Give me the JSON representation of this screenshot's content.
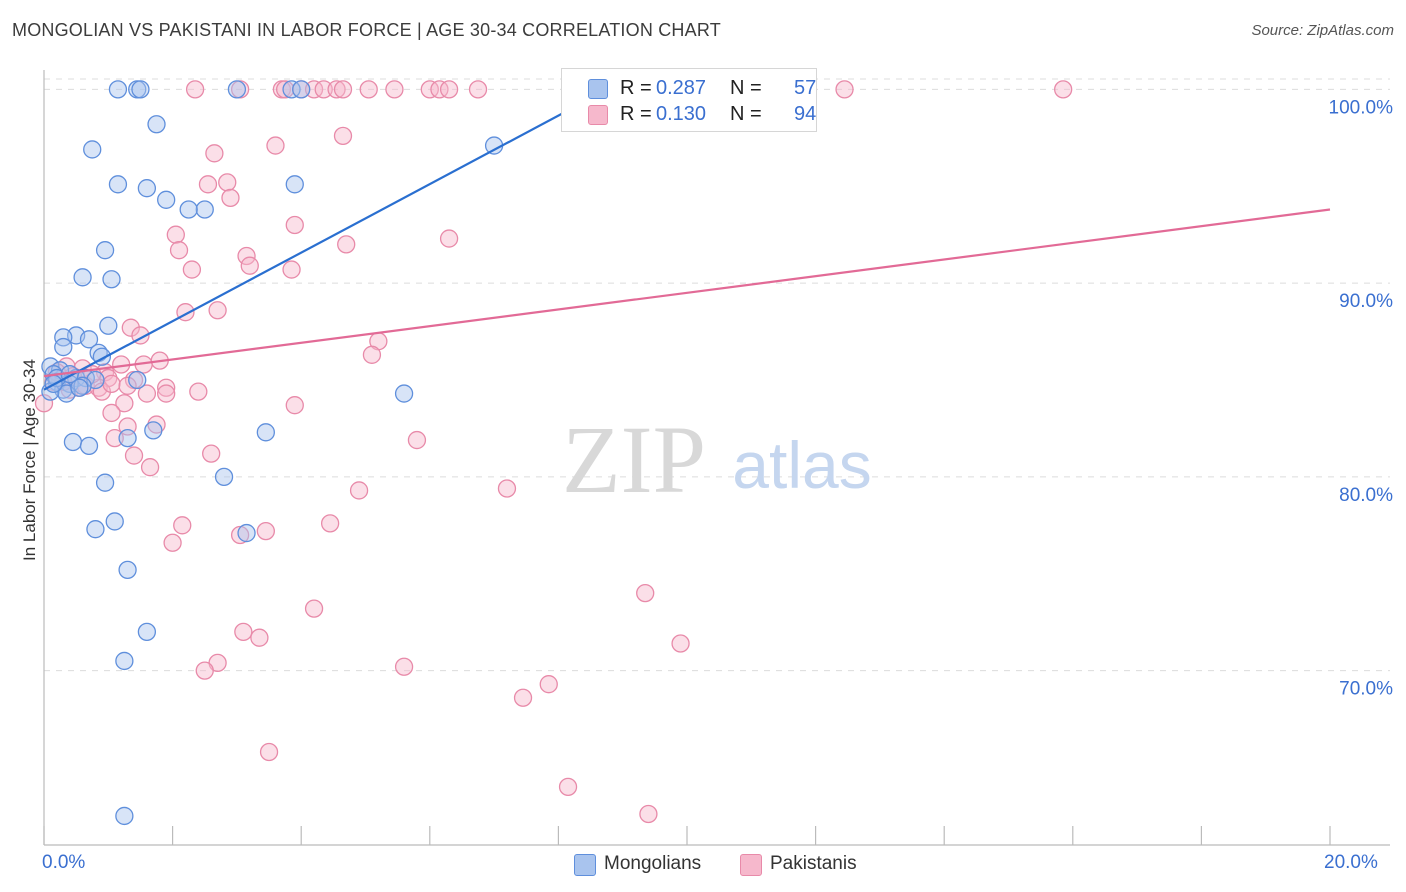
{
  "title": "MONGOLIAN VS PAKISTANI IN LABOR FORCE | AGE 30-34 CORRELATION CHART",
  "source": "Source: ZipAtlas.com",
  "watermark": {
    "zip": "ZIP",
    "atlas": "atlas"
  },
  "colors": {
    "blue_fill": "#a9c4ee",
    "blue_stroke": "#5f8fdc",
    "blue_line": "#2a6fd0",
    "pink_fill": "#f6b8cc",
    "pink_stroke": "#e88aa9",
    "pink_line": "#e26a96",
    "tick_label": "#3a6fd0",
    "grid": "#dcdcdc"
  },
  "legend": {
    "rows": [
      {
        "r_label": "R =",
        "r_value": "0.287",
        "n_label": "N =",
        "n_value": "57"
      },
      {
        "r_label": "R =",
        "r_value": "0.130",
        "n_label": "N =",
        "n_value": "94"
      }
    ]
  },
  "bottom_legend": {
    "mongolians": "Mongolians",
    "pakistanis": "Pakistanis"
  },
  "chart_data": {
    "type": "scatter",
    "title": "MONGOLIAN VS PAKISTANI IN LABOR FORCE | AGE 30-34 CORRELATION CHART",
    "xlabel": "",
    "ylabel": "In Labor Force | Age 30-34",
    "xlim": [
      0,
      20
    ],
    "ylim": [
      61,
      101
    ],
    "x_tick_labels": [
      "0.0%",
      "20.0%"
    ],
    "y_ticks": [
      70,
      80,
      90,
      100
    ],
    "y_tick_labels": [
      "70.0%",
      "80.0%",
      "90.0%",
      "100.0%"
    ],
    "grid": true,
    "series": [
      {
        "name": "Mongolians",
        "color": "blue",
        "trend": {
          "x0": 0.0,
          "y0": 84.5,
          "x1": 8.2,
          "y1": 99.0
        },
        "points": [
          [
            1.15,
            100
          ],
          [
            1.45,
            100
          ],
          [
            1.5,
            100
          ],
          [
            3.0,
            100
          ],
          [
            3.85,
            100
          ],
          [
            4.0,
            100
          ],
          [
            1.75,
            98.2
          ],
          [
            7.0,
            97.1
          ],
          [
            0.75,
            96.9
          ],
          [
            1.15,
            95.1
          ],
          [
            1.6,
            94.9
          ],
          [
            3.9,
            95.1
          ],
          [
            1.9,
            94.3
          ],
          [
            2.5,
            93.8
          ],
          [
            2.25,
            93.8
          ],
          [
            0.95,
            91.7
          ],
          [
            0.6,
            90.3
          ],
          [
            1.05,
            90.2
          ],
          [
            1.0,
            87.8
          ],
          [
            0.5,
            87.3
          ],
          [
            0.3,
            87.2
          ],
          [
            0.7,
            87.1
          ],
          [
            0.3,
            86.7
          ],
          [
            0.85,
            86.4
          ],
          [
            0.9,
            86.2
          ],
          [
            0.1,
            85.7
          ],
          [
            0.25,
            85.5
          ],
          [
            0.15,
            85.3
          ],
          [
            0.5,
            85.1
          ],
          [
            0.65,
            85.1
          ],
          [
            0.8,
            85.0
          ],
          [
            1.45,
            85.0
          ],
          [
            0.2,
            84.9
          ],
          [
            0.4,
            84.8
          ],
          [
            0.6,
            84.7
          ],
          [
            0.3,
            84.5
          ],
          [
            0.1,
            84.4
          ],
          [
            0.35,
            84.3
          ],
          [
            5.6,
            84.3
          ],
          [
            1.7,
            82.4
          ],
          [
            3.45,
            82.3
          ],
          [
            1.3,
            82.0
          ],
          [
            0.45,
            81.8
          ],
          [
            0.7,
            81.6
          ],
          [
            2.8,
            80.0
          ],
          [
            0.95,
            79.7
          ],
          [
            1.1,
            77.7
          ],
          [
            0.8,
            77.3
          ],
          [
            3.15,
            77.1
          ],
          [
            1.3,
            75.2
          ],
          [
            1.6,
            72.0
          ],
          [
            1.25,
            70.5
          ],
          [
            1.25,
            62.5
          ],
          [
            0.2,
            85.1
          ],
          [
            0.55,
            84.6
          ],
          [
            0.15,
            84.8
          ],
          [
            0.4,
            85.3
          ]
        ]
      },
      {
        "name": "Pakistanis",
        "color": "pink",
        "trend": {
          "x0": 0.0,
          "y0": 85.2,
          "x1": 20.0,
          "y1": 93.8
        },
        "points": [
          [
            2.35,
            100
          ],
          [
            3.05,
            100
          ],
          [
            3.7,
            100
          ],
          [
            3.75,
            100
          ],
          [
            4.0,
            100
          ],
          [
            4.2,
            100
          ],
          [
            4.35,
            100
          ],
          [
            4.55,
            100
          ],
          [
            4.65,
            100
          ],
          [
            5.05,
            100
          ],
          [
            5.45,
            100
          ],
          [
            6.0,
            100
          ],
          [
            6.15,
            100
          ],
          [
            6.3,
            100
          ],
          [
            6.75,
            100
          ],
          [
            12.45,
            100
          ],
          [
            15.85,
            100
          ],
          [
            4.65,
            97.6
          ],
          [
            3.6,
            97.1
          ],
          [
            2.65,
            96.7
          ],
          [
            2.85,
            95.2
          ],
          [
            2.55,
            95.1
          ],
          [
            2.9,
            94.4
          ],
          [
            3.9,
            93.0
          ],
          [
            2.05,
            92.5
          ],
          [
            6.3,
            92.3
          ],
          [
            4.7,
            92.0
          ],
          [
            2.1,
            91.7
          ],
          [
            3.15,
            91.4
          ],
          [
            3.2,
            90.9
          ],
          [
            2.3,
            90.7
          ],
          [
            3.85,
            90.7
          ],
          [
            2.2,
            88.5
          ],
          [
            2.7,
            88.6
          ],
          [
            1.35,
            87.7
          ],
          [
            1.5,
            87.3
          ],
          [
            5.2,
            87.0
          ],
          [
            5.1,
            86.3
          ],
          [
            1.8,
            86.0
          ],
          [
            1.55,
            85.8
          ],
          [
            1.2,
            85.8
          ],
          [
            0.35,
            85.7
          ],
          [
            0.6,
            85.6
          ],
          [
            0.95,
            85.4
          ],
          [
            0.45,
            85.2
          ],
          [
            1.0,
            85.1
          ],
          [
            0.25,
            85.0
          ],
          [
            0.15,
            84.9
          ],
          [
            0.65,
            84.7
          ],
          [
            0.85,
            84.6
          ],
          [
            0.4,
            84.5
          ],
          [
            0.9,
            84.4
          ],
          [
            1.05,
            84.8
          ],
          [
            1.9,
            84.6
          ],
          [
            1.6,
            84.3
          ],
          [
            1.9,
            84.3
          ],
          [
            2.4,
            84.4
          ],
          [
            1.25,
            83.8
          ],
          [
            1.05,
            83.3
          ],
          [
            3.9,
            83.7
          ],
          [
            1.3,
            82.6
          ],
          [
            1.75,
            82.7
          ],
          [
            1.1,
            82.0
          ],
          [
            5.8,
            81.9
          ],
          [
            2.6,
            81.2
          ],
          [
            1.4,
            81.1
          ],
          [
            1.65,
            80.5
          ],
          [
            7.2,
            79.4
          ],
          [
            4.9,
            79.3
          ],
          [
            2.15,
            77.5
          ],
          [
            4.45,
            77.6
          ],
          [
            3.05,
            77.0
          ],
          [
            3.45,
            77.2
          ],
          [
            2.0,
            76.6
          ],
          [
            0.0,
            83.8
          ],
          [
            9.35,
            74.0
          ],
          [
            4.2,
            73.2
          ],
          [
            3.1,
            72.0
          ],
          [
            3.35,
            71.7
          ],
          [
            9.9,
            71.4
          ],
          [
            2.7,
            70.4
          ],
          [
            2.5,
            70.0
          ],
          [
            5.6,
            70.2
          ],
          [
            7.85,
            69.3
          ],
          [
            7.45,
            68.6
          ],
          [
            3.5,
            65.8
          ],
          [
            8.15,
            64.0
          ],
          [
            9.4,
            62.6
          ],
          [
            0.2,
            85.4
          ],
          [
            0.3,
            84.9
          ],
          [
            0.75,
            85.3
          ],
          [
            0.55,
            84.6
          ],
          [
            1.4,
            85.0
          ],
          [
            1.3,
            84.7
          ]
        ]
      }
    ]
  }
}
